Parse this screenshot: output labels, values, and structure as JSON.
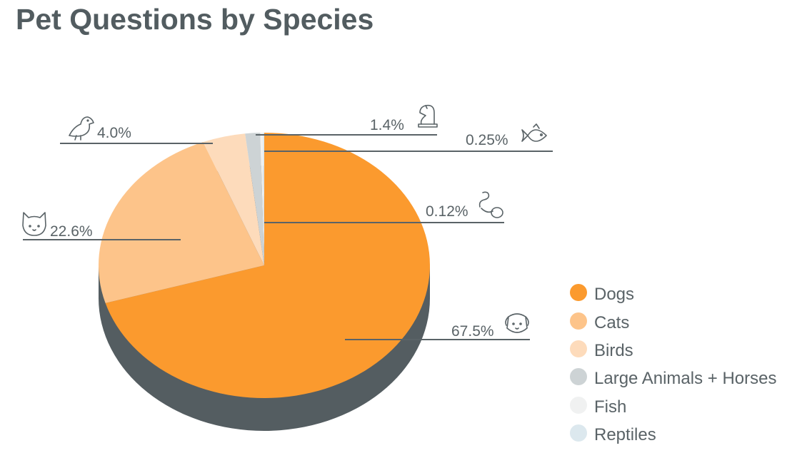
{
  "chart_data": {
    "type": "pie",
    "title": "Pet Questions by Species",
    "style": "3d",
    "legend_position": "right",
    "slices": [
      {
        "name": "Dogs",
        "value": 67.5,
        "label": "67.5%",
        "icon": "dog-icon",
        "color": "#fb9a2e"
      },
      {
        "name": "Cats",
        "value": 22.6,
        "label": "22.6%",
        "icon": "cat-icon",
        "color": "#fdc48a"
      },
      {
        "name": "Birds",
        "value": 4.0,
        "label": "4.0%",
        "icon": "bird-icon",
        "color": "#fddbbb"
      },
      {
        "name": "Large Animals + Horses",
        "value": 1.4,
        "label": "1.4%",
        "icon": "horse-icon",
        "color": "#cdd3d5"
      },
      {
        "name": "Fish",
        "value": 0.25,
        "label": "0.25%",
        "icon": "fish-icon",
        "color": "#f0f1f1"
      },
      {
        "name": "Reptiles",
        "value": 0.12,
        "label": "0.12%",
        "icon": "snake-icon",
        "color": "#dce8ee"
      }
    ],
    "side_color": "#545d61",
    "line_color": "#5a6367"
  }
}
